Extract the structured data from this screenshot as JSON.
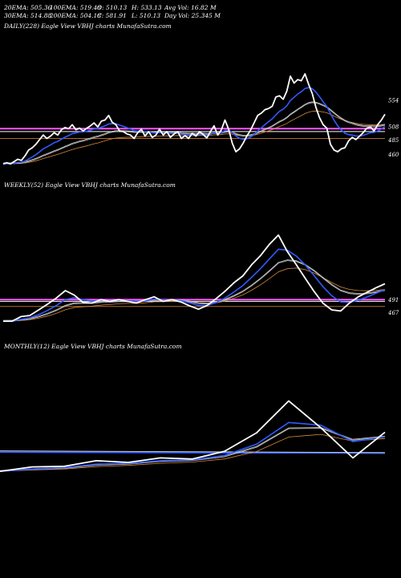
{
  "header": {
    "ema20": "20EMA: 505.36",
    "ema100": "100EMA: 519.48",
    "open": "O: 510.13",
    "high": "H: 533.13",
    "avg_vol": "Avg Vol: 16.82  M",
    "ema30": "30EMA: 514.88",
    "ema200": "200EMA: 504.18",
    "close": "C: 581.91",
    "low": "L: 510.13",
    "day_vol": "Day Vol: 25.345  M"
  },
  "chart_data": [
    {
      "type": "line",
      "title": "DAILY(228) Eagle  View  VBHJ charts MunafaSutra.com",
      "levels": [
        "554",
        "508",
        "485",
        "460"
      ],
      "colors": {
        "price": "#ffffff",
        "ema_short": "#2f5bff",
        "ema_long": "#c8c8c8",
        "h1": "#ff55ff",
        "h2": "#ffffff",
        "support": "#b06a2a"
      },
      "series": [
        {
          "name": "",
          "values": [
            444,
            446,
            444,
            448,
            452,
            450,
            458,
            468,
            472,
            478,
            486,
            494,
            488,
            492,
            498,
            494,
            503,
            507,
            505,
            512,
            503,
            506,
            501,
            506,
            510,
            515,
            508,
            518,
            520,
            528,
            516,
            512,
            501,
            500,
            496,
            494,
            488,
            498,
            504,
            492,
            500,
            490,
            494,
            504,
            494,
            500,
            490,
            496,
            500,
            488,
            493,
            488,
            497,
            492,
            500,
            495,
            489,
            500,
            510,
            494,
            503,
            520,
            504,
            480,
            465,
            470,
            480,
            492,
            502,
            515,
            528,
            532,
            538,
            540,
            544,
            560,
            562,
            556,
            570,
            596,
            584,
            590,
            588,
            600,
            582,
            566,
            542,
            524,
            512,
            506,
            478,
            468,
            465,
            470,
            472,
            484,
            490,
            486,
            492,
            498,
            506,
            508,
            501,
            512,
            520,
            530
          ]
        }
      ]
    },
    {
      "type": "line",
      "title": "WEEKLY(52) Eagle  View  VBHJ charts MunafaSutra.com",
      "levels": [
        "491",
        "467"
      ],
      "colors": {
        "price": "#ffffff",
        "ema_short": "#2f5bff",
        "ema_long": "#c8c8c8",
        "h1": "#ff55ff",
        "h2": "#ffffff",
        "support": "#b06a2a"
      },
      "series": [
        {
          "name": "",
          "values": [
            452,
            452,
            460,
            462,
            472,
            482,
            493,
            506,
            498,
            485,
            484,
            490,
            487,
            490,
            487,
            484,
            490,
            495,
            487,
            490,
            486,
            479,
            473,
            480,
            492,
            505,
            520,
            532,
            552,
            568,
            588,
            604,
            575,
            552,
            528,
            505,
            484,
            472,
            470,
            484,
            495,
            503,
            511,
            518
          ]
        }
      ]
    },
    {
      "type": "line",
      "title": "MONTHLY(12) Eagle  View  VBHJ charts MunafaSutra.com",
      "levels": [],
      "colors": {
        "price": "#ffffff",
        "ema_short": "#2f5bff",
        "ema_long": "#c8c8c8"
      },
      "series": [
        {
          "name": "",
          "values": [
            452,
            460,
            461,
            471,
            468,
            476,
            474,
            488,
            521,
            578,
            530,
            476,
            522
          ]
        }
      ]
    }
  ]
}
